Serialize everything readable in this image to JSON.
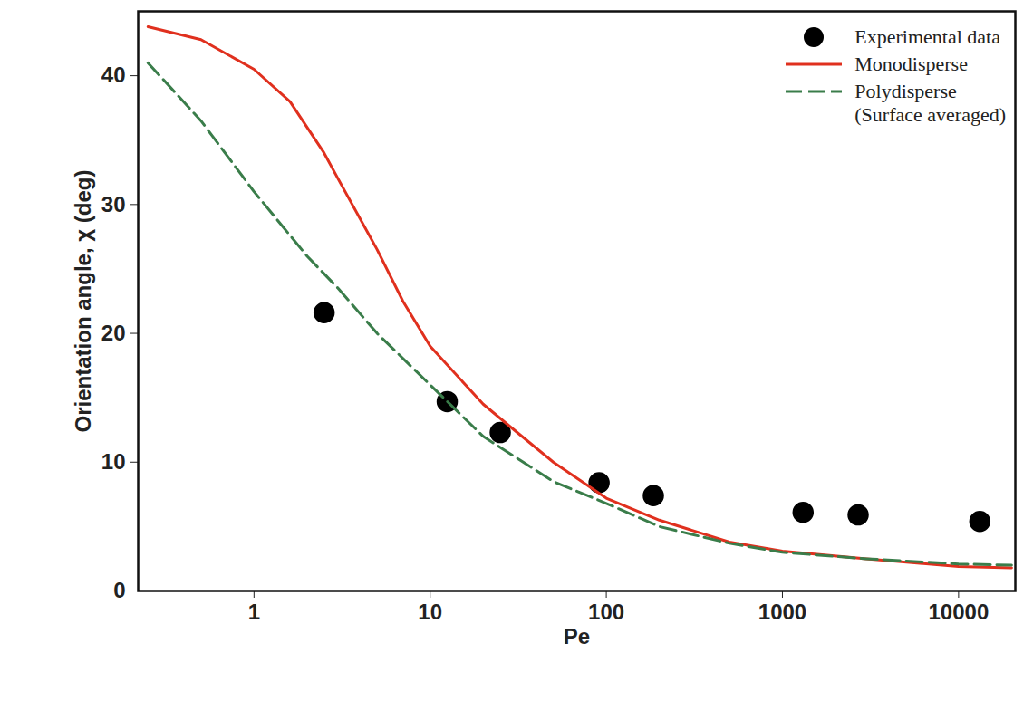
{
  "chart_data": {
    "type": "line",
    "x_label": "Pe",
    "y_label": "Orientation angle, χ (deg)",
    "log": "x",
    "xlim": [
      0.22,
      21000
    ],
    "xticks": [
      1,
      10,
      100,
      1000,
      10000
    ],
    "ylim": [
      0,
      45
    ],
    "yticks": [
      0,
      10,
      20,
      30,
      40
    ],
    "grid": false,
    "legend": "top-right",
    "series": [
      {
        "name": "Experimental data",
        "type": "scatter",
        "marker": "circle",
        "color": "#000000",
        "x": [
          2.5,
          12.5,
          25,
          91,
          185,
          1310,
          2690,
          13200
        ],
        "values": [
          21.6,
          14.7,
          12.3,
          8.4,
          7.4,
          6.1,
          5.9,
          5.4
        ]
      },
      {
        "name": "Monodisperse",
        "type": "line",
        "line_style": "solid",
        "color": "#e0301e",
        "x": [
          0.25,
          0.5,
          1,
          1.6,
          2.5,
          3,
          5,
          7,
          10,
          20,
          30,
          50,
          100,
          200,
          500,
          1000,
          3000,
          10000,
          20000
        ],
        "values": [
          43.8,
          42.8,
          40.5,
          38,
          34,
          32,
          26.5,
          22.5,
          19,
          14.5,
          12.5,
          10,
          7.2,
          5.5,
          3.8,
          3.1,
          2.5,
          1.9,
          1.8
        ]
      },
      {
        "name": "Polydisperse\n(Surface averaged)",
        "type": "line",
        "line_style": "dashed",
        "color": "#3a7d4a",
        "x": [
          0.25,
          0.5,
          1,
          2,
          3,
          5,
          10,
          20,
          50,
          100,
          200,
          500,
          1000,
          3000,
          10000,
          20000
        ],
        "values": [
          41,
          36.5,
          31,
          26,
          23.5,
          20,
          16,
          12,
          8.5,
          6.8,
          5,
          3.7,
          3,
          2.5,
          2.1,
          2.0
        ]
      }
    ]
  }
}
